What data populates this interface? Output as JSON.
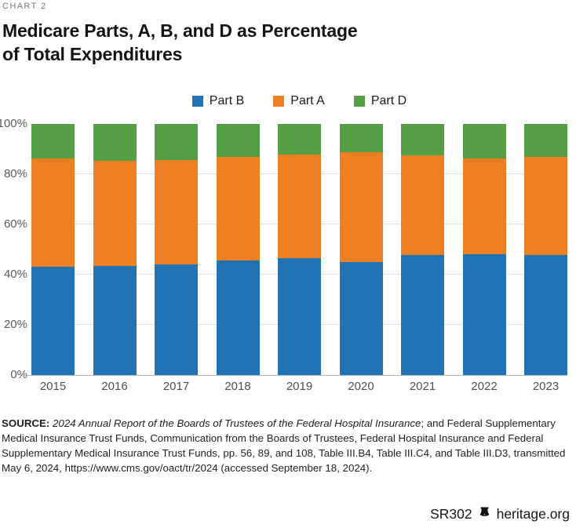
{
  "header": {
    "eyebrow": "CHART 2",
    "title_line1": "Medicare Parts, A, B, and D as Percentage",
    "title_line2": "of Total Expenditures"
  },
  "chart_data": {
    "type": "bar",
    "stacked": true,
    "title": "Medicare Parts, A, B, and D as Percentage of Total Expenditures",
    "categories": [
      "2015",
      "2016",
      "2017",
      "2018",
      "2019",
      "2020",
      "2021",
      "2022",
      "2023"
    ],
    "series": [
      {
        "name": "Part B",
        "color": "#2173b4",
        "values": [
          43.0,
          43.3,
          44.1,
          45.5,
          46.6,
          45.0,
          47.9,
          48.0,
          47.9
        ]
      },
      {
        "name": "Part A",
        "color": "#ed8023",
        "values": [
          43.2,
          41.9,
          41.5,
          41.5,
          41.3,
          43.7,
          39.6,
          38.2,
          39.1
        ]
      },
      {
        "name": "Part D",
        "color": "#549f45",
        "values": [
          13.8,
          14.8,
          14.4,
          13.0,
          12.1,
          11.3,
          12.5,
          13.8,
          13.0
        ]
      }
    ],
    "legend_order": [
      "Part B",
      "Part A",
      "Part D"
    ],
    "legend_position": "top-center",
    "xlabel": "",
    "ylabel": "",
    "ylim": [
      0,
      100
    ],
    "y_ticks": [
      "0%",
      "20%",
      "40%",
      "60%",
      "80%",
      "100%"
    ],
    "grid": true,
    "units": "percent of total Medicare expenditures"
  },
  "colors": {
    "axis_text": "#595959",
    "gridline": "#e4e4e4",
    "baseline": "#b6b6b6"
  },
  "source": {
    "label": "SOURCE:",
    "italic": "2024 Annual Report of the Boards of Trustees of the Federal Hospital Insurance",
    "rest": "; and Federal Supplementary Medical Insurance Trust Funds, Communication from the Boards of Trustees, Federal Hospital Insurance and Federal Supplementary Medical Insurance Trust Funds, pp. 56, 89, and 108, Table III.B4, Table III.C4, and Table III.D3, transmitted May 6, 2024, https://www.cms.gov/oact/tr/2024 (accessed September 18, 2024)."
  },
  "footer": {
    "report_id": "SR302",
    "site": "heritage.org",
    "logo_icon": "liberty-bell-icon"
  }
}
